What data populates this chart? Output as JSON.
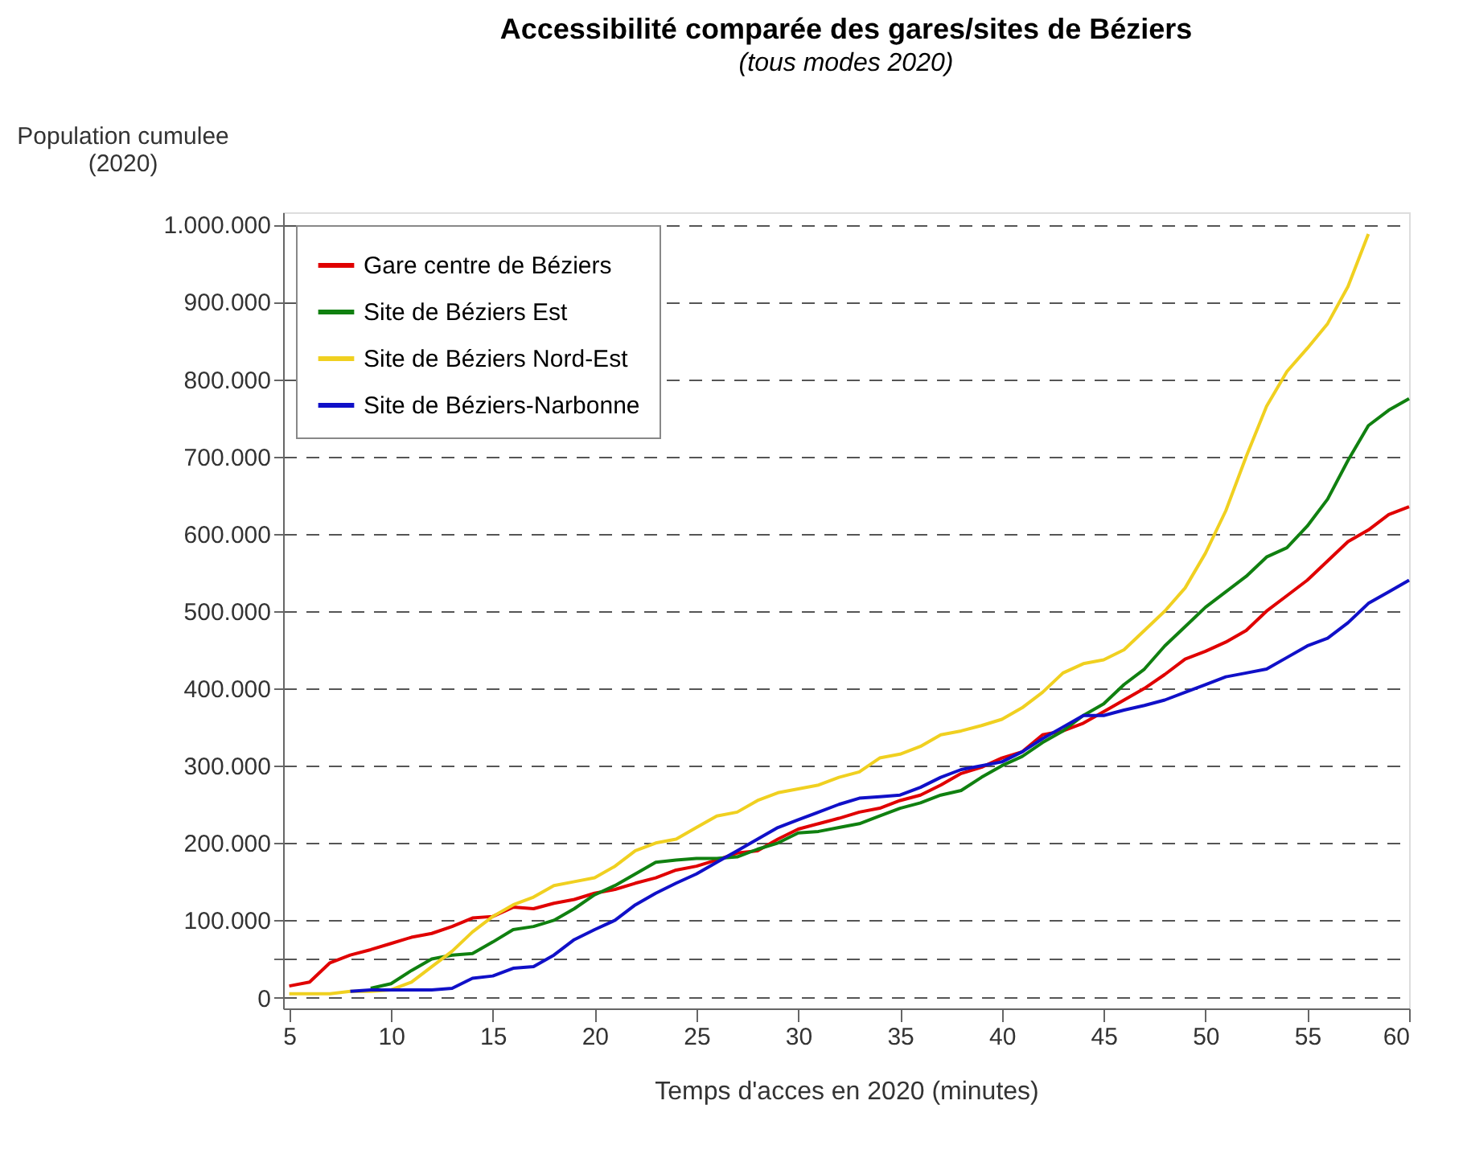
{
  "chart_data": {
    "type": "line",
    "title": "Accessibilité comparée des gares/sites de Béziers",
    "subtitle": "(tous modes 2020)",
    "xlabel": "Temps d'acces en 2020 (minutes)",
    "ylabel": "Population cumulee\n(2020)",
    "xlim": [
      4.7,
      60
    ],
    "xticks": [
      5,
      10,
      15,
      20,
      25,
      30,
      35,
      40,
      45,
      50,
      55,
      60
    ],
    "ylim": [
      -14000,
      1016000
    ],
    "yticks": [
      {
        "value": 0,
        "label": "0"
      },
      {
        "value": 50000,
        "label": null
      },
      {
        "value": 100000,
        "label": "100.000"
      },
      {
        "value": 200000,
        "label": "200.000"
      },
      {
        "value": 300000,
        "label": "300.000"
      },
      {
        "value": 400000,
        "label": "400.000"
      },
      {
        "value": 500000,
        "label": "500.000"
      },
      {
        "value": 600000,
        "label": "600.000"
      },
      {
        "value": 700000,
        "label": "700.000"
      },
      {
        "value": 800000,
        "label": "800.000"
      },
      {
        "value": 900000,
        "label": "900.000"
      },
      {
        "value": 1000000,
        "label": "1.000.000"
      }
    ],
    "grid": "y",
    "legend": "top left",
    "marker": "none",
    "line_style": "solid",
    "x": [
      5,
      6,
      7,
      8,
      9,
      10,
      11,
      12,
      13,
      14,
      15,
      16,
      17,
      18,
      19,
      20,
      21,
      22,
      23,
      24,
      25,
      26,
      27,
      28,
      29,
      30,
      31,
      32,
      33,
      34,
      35,
      36,
      37,
      38,
      39,
      40,
      41,
      42,
      43,
      44,
      45,
      46,
      47,
      48,
      49,
      50,
      51,
      52,
      53,
      54,
      55,
      56,
      57,
      58,
      59,
      60
    ],
    "series": [
      {
        "name": "Gare centre de Béziers",
        "color": "#e00000",
        "values": [
          15000,
          20000,
          45000,
          55000,
          62000,
          70000,
          78000,
          83000,
          92000,
          103000,
          105000,
          117000,
          115000,
          122000,
          127000,
          135000,
          140000,
          148000,
          155000,
          165000,
          170000,
          178000,
          187000,
          190000,
          205000,
          218000,
          225000,
          232000,
          240000,
          245000,
          255000,
          262000,
          275000,
          290000,
          298000,
          310000,
          318000,
          340000,
          345000,
          355000,
          370000,
          385000,
          400000,
          418000,
          438000,
          448000,
          460000,
          475000,
          500000,
          520000,
          540000,
          565000,
          590000,
          605000,
          625000,
          635000
        ]
      },
      {
        "name": "Site de Béziers Est",
        "color": "#108010",
        "values": [
          null,
          null,
          null,
          null,
          12000,
          18000,
          35000,
          50000,
          55000,
          57000,
          72000,
          88000,
          92000,
          100000,
          115000,
          133000,
          145000,
          160000,
          175000,
          178000,
          180000,
          180000,
          182000,
          192000,
          200000,
          213000,
          215000,
          220000,
          225000,
          235000,
          245000,
          252000,
          262000,
          268000,
          285000,
          300000,
          312000,
          330000,
          345000,
          365000,
          380000,
          405000,
          425000,
          455000,
          480000,
          505000,
          525000,
          545000,
          570000,
          582000,
          610000,
          645000,
          695000,
          740000,
          760000,
          775000
        ]
      },
      {
        "name": "Site de Béziers Nord-Est",
        "color": "#f0d020",
        "values": [
          5000,
          5000,
          5000,
          8000,
          8000,
          10000,
          20000,
          40000,
          60000,
          85000,
          105000,
          120000,
          130000,
          145000,
          150000,
          155000,
          170000,
          190000,
          200000,
          205000,
          220000,
          235000,
          240000,
          255000,
          265000,
          270000,
          275000,
          285000,
          292000,
          310000,
          315000,
          325000,
          340000,
          345000,
          352000,
          360000,
          375000,
          395000,
          420000,
          432000,
          437000,
          450000,
          475000,
          500000,
          530000,
          575000,
          630000,
          700000,
          765000,
          810000,
          840000,
          872000,
          920000,
          988000,
          null,
          null
        ]
      },
      {
        "name": "Site de Béziers-Narbonne",
        "color": "#1010c8",
        "values": [
          null,
          null,
          null,
          8000,
          10000,
          10000,
          10000,
          10000,
          12000,
          25000,
          28000,
          38000,
          40000,
          55000,
          75000,
          88000,
          100000,
          120000,
          135000,
          148000,
          160000,
          175000,
          190000,
          205000,
          220000,
          230000,
          240000,
          250000,
          258000,
          260000,
          262000,
          272000,
          285000,
          295000,
          300000,
          305000,
          318000,
          335000,
          350000,
          365000,
          365000,
          372000,
          378000,
          385000,
          395000,
          405000,
          415000,
          420000,
          425000,
          440000,
          455000,
          465000,
          485000,
          510000,
          525000,
          540000
        ]
      }
    ]
  }
}
